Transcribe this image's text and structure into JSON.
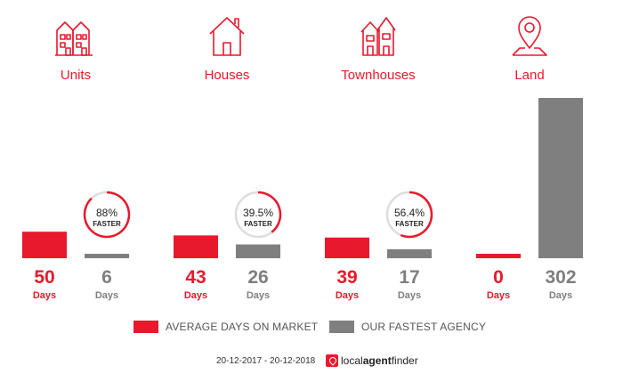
{
  "colors": {
    "accent": "#e8192c",
    "agency": "#7f7f7f",
    "ring_track": "#dddddd",
    "text_gray": "#777777"
  },
  "chart_data": {
    "type": "bar",
    "categories": [
      "Units",
      "Houses",
      "Townhouses",
      "Land"
    ],
    "icons": [
      "apartment-building-icon",
      "house-icon",
      "townhouses-icon",
      "map-pin-icon"
    ],
    "series": [
      {
        "name": "AVERAGE DAYS ON MARKET",
        "values": [
          50,
          43,
          39,
          0
        ],
        "color": "#e8192c"
      },
      {
        "name": "OUR FASTEST AGENCY",
        "values": [
          6,
          26,
          17,
          302
        ],
        "color": "#7f7f7f"
      }
    ],
    "value_unit": "Days",
    "faster": [
      {
        "percent": 88,
        "label": "88%",
        "word": "FASTER"
      },
      {
        "percent": 39.5,
        "label": "39.5%",
        "word": "FASTER"
      },
      {
        "percent": 56.4,
        "label": "56.4%",
        "word": "FASTER"
      },
      null
    ],
    "ylim": [
      0,
      302
    ]
  },
  "legend": {
    "avg_label": "AVERAGE DAYS ON MARKET",
    "agency_label": "OUR FASTEST AGENCY"
  },
  "footer": {
    "date_range": "20-12-2017 - 20-12-2018",
    "logo_prefix": "local",
    "logo_middle": "agent",
    "logo_suffix": "finder"
  }
}
